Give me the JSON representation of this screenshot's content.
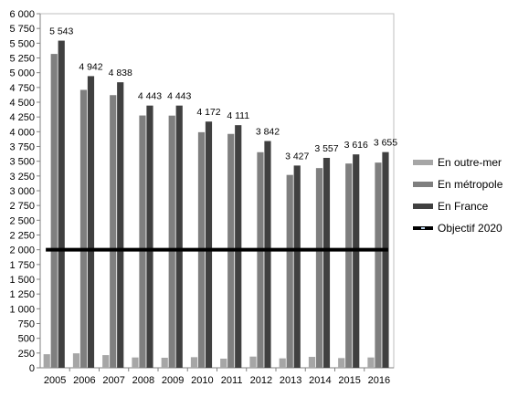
{
  "chart_data": {
    "type": "bar",
    "categories": [
      "2005",
      "2006",
      "2007",
      "2008",
      "2009",
      "2010",
      "2011",
      "2012",
      "2013",
      "2014",
      "2015",
      "2016"
    ],
    "series": [
      {
        "name": "En outre-mer",
        "color": "#a6a6a6",
        "values": [
          230,
          245,
          215,
          175,
          170,
          180,
          155,
          190,
          160,
          185,
          165,
          175
        ]
      },
      {
        "name": "En métropole",
        "color": "#7f7f7f",
        "values": [
          5318,
          4709,
          4620,
          4275,
          4273,
          3992,
          3963,
          3653,
          3268,
          3384,
          3461,
          3477
        ]
      },
      {
        "name": "En France",
        "color": "#404040",
        "values": [
          5543,
          4942,
          4838,
          4443,
          4443,
          4172,
          4111,
          3842,
          3427,
          3557,
          3616,
          3655
        ]
      }
    ],
    "data_labels": [
      "5 543",
      "4 942",
      "4 838",
      "4 443",
      "4 443",
      "4 172",
      "4 111",
      "3 842",
      "3 427",
      "3 557",
      "3 616",
      "3 655"
    ],
    "target_line": {
      "name": "Objectif 2020",
      "value": 2000,
      "color": "#000000"
    },
    "y_ticks": [
      "0",
      "250",
      "500",
      "750",
      "1 000",
      "1 250",
      "1 500",
      "1 750",
      "2 000",
      "2 250",
      "2 500",
      "2 750",
      "3 000",
      "3 250",
      "3 500",
      "3 750",
      "4 000",
      "4 250",
      "4 500",
      "4 750",
      "5 000",
      "5 250",
      "5 500",
      "5 750",
      "6 000"
    ],
    "ylim": [
      0,
      6000
    ],
    "grid": false,
    "legend_position": "right",
    "title": "",
    "xlabel": "",
    "ylabel": ""
  }
}
